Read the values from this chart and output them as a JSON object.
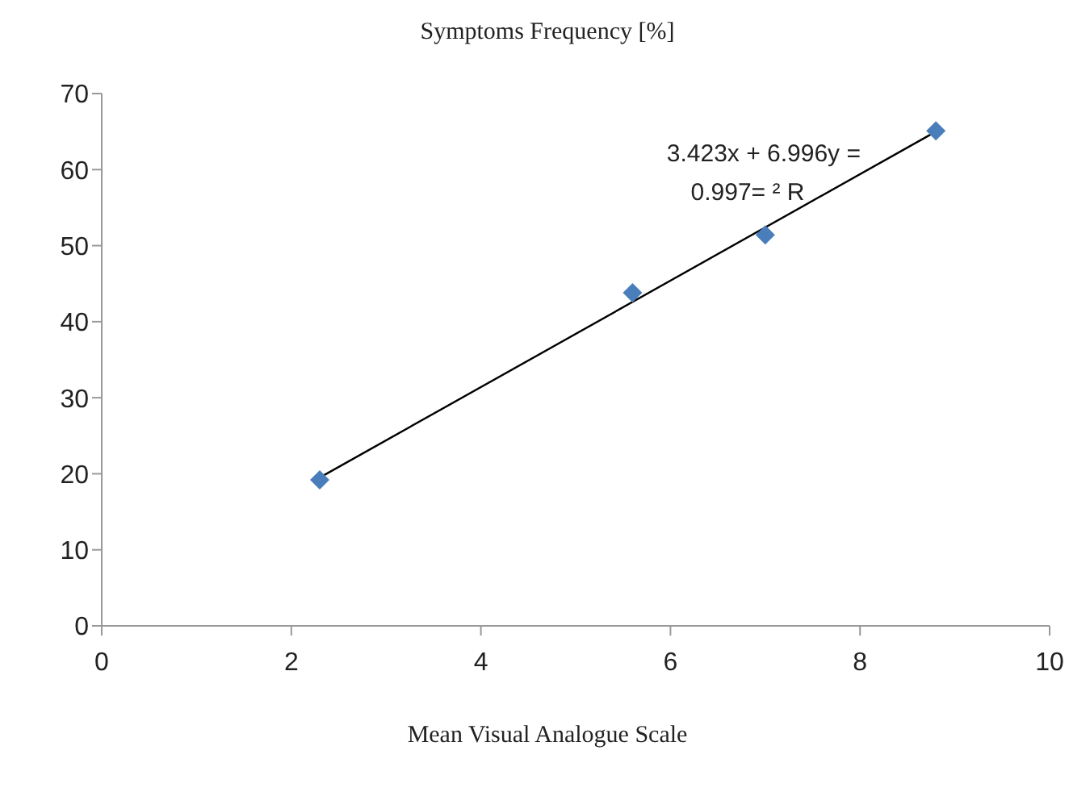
{
  "chart_data": {
    "type": "scatter",
    "ylabel": "Symptoms Frequency [%]",
    "xlabel": "Mean Visual Analogue Scale",
    "x": [
      2.3,
      5.6,
      7.0,
      8.8
    ],
    "series": [
      {
        "color": "#4a7ebb",
        "values": [
          19.2,
          43.8,
          51.4,
          65.1
        ],
        "marker": "diamond"
      },
      {
        "type": "line",
        "color": "#000000",
        "x": [
          2.3,
          8.8
        ],
        "values": [
          19.5,
          65.0
        ],
        "marker": "none"
      }
    ],
    "annotations": [
      "3.423x + 6.996y =",
      "0.997= ² R"
    ],
    "xlim": [
      0,
      10
    ],
    "xticks": [
      0,
      2,
      4,
      6,
      8,
      10
    ],
    "ylim": [
      0,
      70
    ],
    "yticks": [
      0,
      10,
      20,
      30,
      40,
      50,
      60,
      70
    ],
    "grid": false,
    "legend": false
  }
}
